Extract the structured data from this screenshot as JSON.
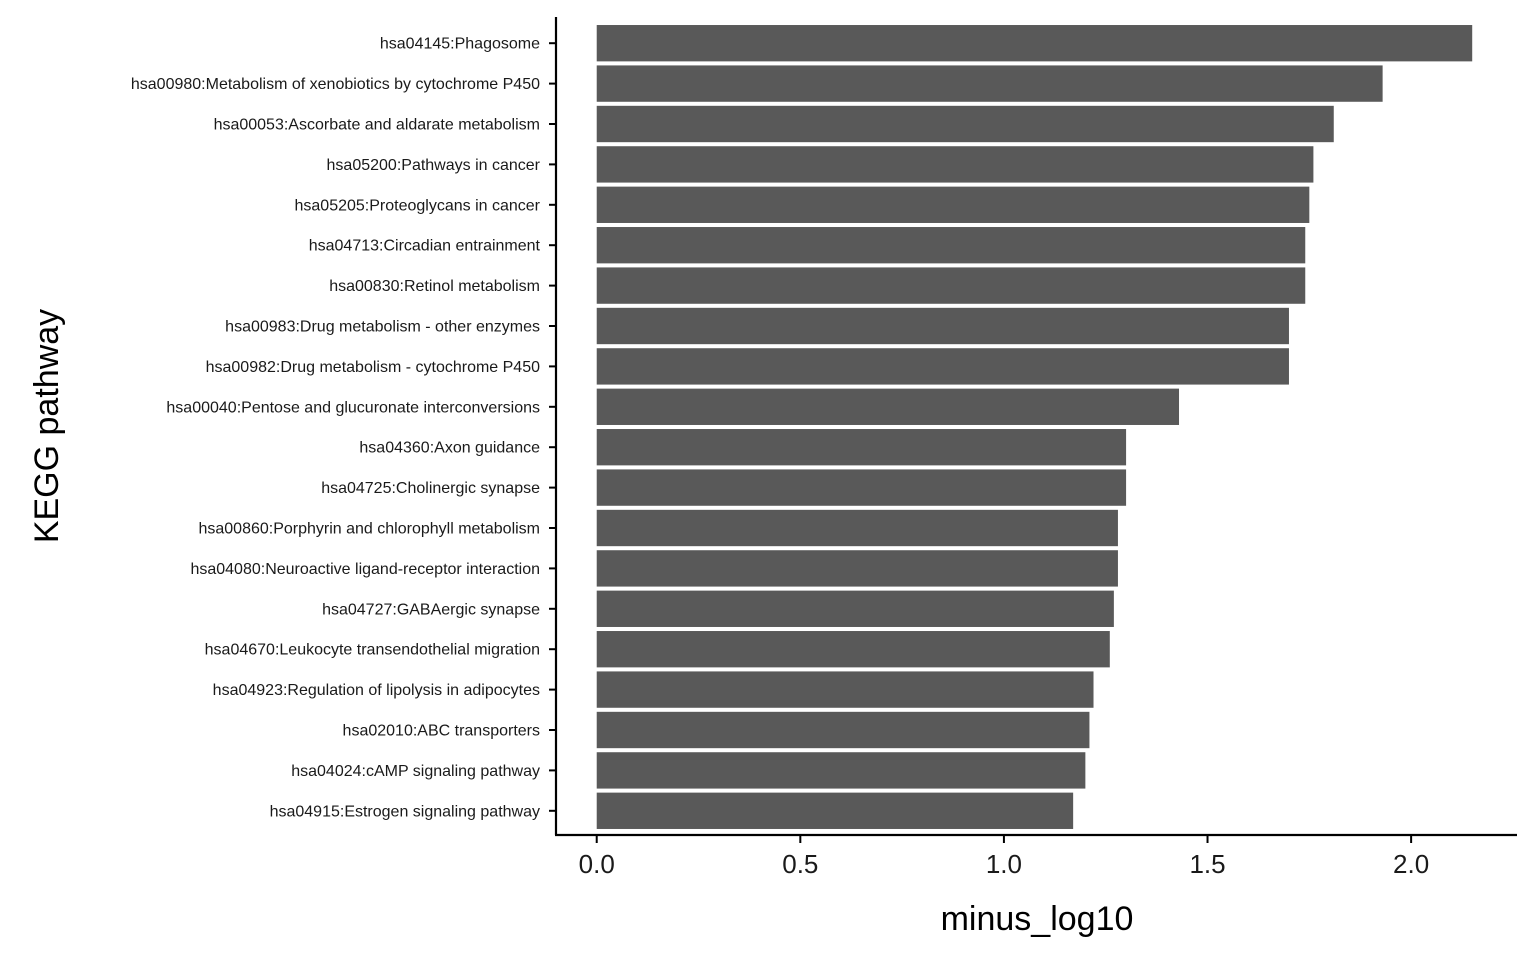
{
  "chart_data": {
    "type": "bar",
    "orientation": "horizontal",
    "title": "",
    "xlabel": "minus_log10",
    "ylabel": "KEGG pathway",
    "xlim": [
      -0.1,
      2.26
    ],
    "xticks": [
      0.0,
      0.5,
      1.0,
      1.5,
      2.0
    ],
    "xtick_labels": [
      "0.0",
      "0.5",
      "1.0",
      "1.5",
      "2.0"
    ],
    "grid": false,
    "legend": "none",
    "bar_color": "#595959",
    "categories": [
      "hsa04145:Phagosome",
      "hsa00980:Metabolism of xenobiotics by cytochrome P450",
      "hsa00053:Ascorbate and aldarate metabolism",
      "hsa05200:Pathways in cancer",
      "hsa05205:Proteoglycans in cancer",
      "hsa04713:Circadian entrainment",
      "hsa00830:Retinol metabolism",
      "hsa00983:Drug metabolism - other enzymes",
      "hsa00982:Drug metabolism - cytochrome P450",
      "hsa00040:Pentose and glucuronate interconversions",
      "hsa04360:Axon guidance",
      "hsa04725:Cholinergic synapse",
      "hsa00860:Porphyrin and chlorophyll metabolism",
      "hsa04080:Neuroactive ligand-receptor interaction",
      "hsa04727:GABAergic synapse",
      "hsa04670:Leukocyte transendothelial migration",
      "hsa04923:Regulation of lipolysis in adipocytes",
      "hsa02010:ABC transporters",
      "hsa04024:cAMP signaling pathway",
      "hsa04915:Estrogen signaling pathway"
    ],
    "values": [
      2.15,
      1.93,
      1.81,
      1.76,
      1.75,
      1.74,
      1.74,
      1.7,
      1.7,
      1.43,
      1.3,
      1.3,
      1.28,
      1.28,
      1.27,
      1.26,
      1.22,
      1.21,
      1.2,
      1.17
    ]
  }
}
